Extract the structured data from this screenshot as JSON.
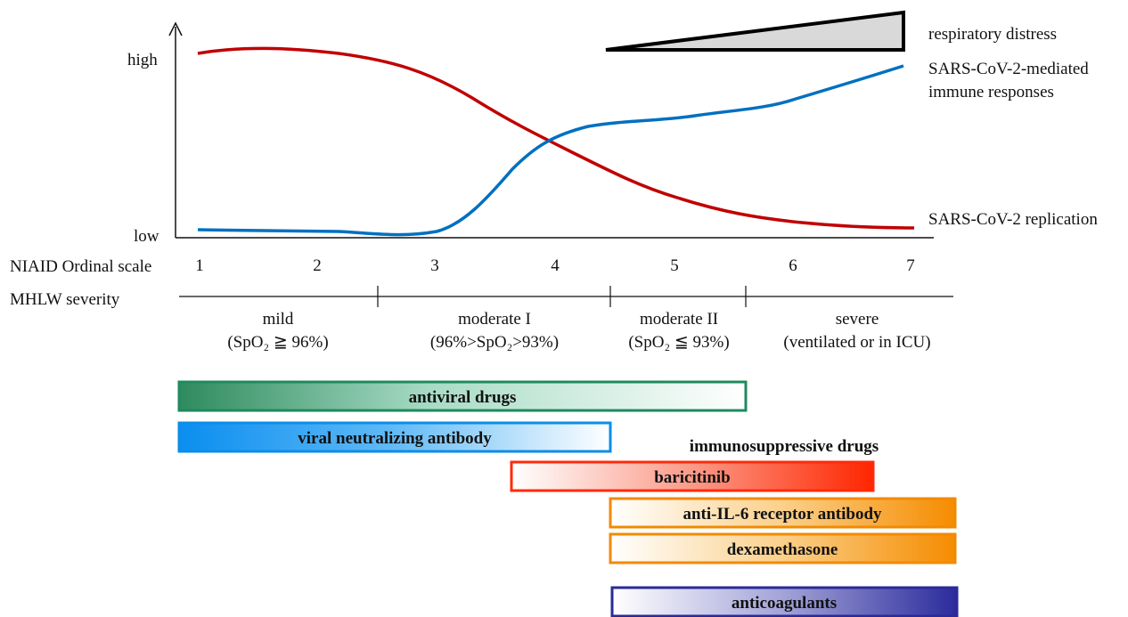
{
  "y_axis": {
    "high_label": "high",
    "low_label": "low"
  },
  "legend": {
    "respiratory_distress": "respiratory distress",
    "immune_line1": "SARS-CoV-2-mediated",
    "immune_line2": "immune responses",
    "replication": "SARS-CoV-2 replication"
  },
  "scales": {
    "niaid_label": "NIAID Ordinal scale",
    "niaid_ticks": [
      "1",
      "2",
      "3",
      "4",
      "5",
      "6",
      "7"
    ],
    "mhlw_label": "MHLW severity"
  },
  "severity": [
    {
      "name": "mild",
      "detail": "(SpO₂ ≧ 96%)"
    },
    {
      "name": "moderate I",
      "detail": "(96%>SpO₂>93%)"
    },
    {
      "name": "moderate II",
      "detail": "(SpO₂ ≦ 93%)"
    },
    {
      "name": "severe",
      "detail": "(ventilated or in ICU)"
    }
  ],
  "colors": {
    "replication": "#c00000",
    "immune": "#0070c0",
    "antiviral": "#1e8a5e",
    "antibody": "#0b8ee8",
    "baricitinib": "#ff2a0a",
    "il6": "#f28a00",
    "dexamethasone": "#f28a00",
    "anticoagulants": "#2a2a9a",
    "immunosuppressive_label": "#c00000"
  },
  "treatments": {
    "antiviral": "antiviral drugs",
    "antibody": "viral neutralizing antibody",
    "immunosuppressive_header": "immunosuppressive drugs",
    "baricitinib": "baricitinib",
    "il6": "anti-IL-6 receptor antibody",
    "dexamethasone": "dexamethasone",
    "anticoagulants": "anticoagulants"
  }
}
